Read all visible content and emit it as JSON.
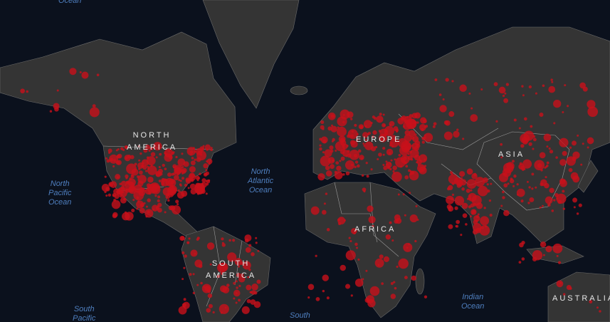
{
  "map": {
    "colors": {
      "ocean": "#0b111d",
      "land": "#343434",
      "border": "#8a8a8a",
      "marker": "#c8101a"
    },
    "ocean_labels": {
      "arctic_partial": "Ocean",
      "north_pacific": [
        "North",
        "Pacific",
        "Ocean"
      ],
      "north_atlantic": [
        "North",
        "Atlantic",
        "Ocean"
      ],
      "indian": [
        "Indian",
        "Ocean"
      ],
      "south_pacific": [
        "South",
        "Pacific"
      ],
      "south_atlantic_partial": "South"
    },
    "continent_labels": {
      "north_america": [
        "NORTH",
        "AMERICA"
      ],
      "south_america": [
        "SOUTH",
        "AMERICA"
      ],
      "europe": "EUROPE",
      "africa": "AFRICA",
      "asia": "ASIA",
      "australia": "AUSTRALIA"
    }
  }
}
